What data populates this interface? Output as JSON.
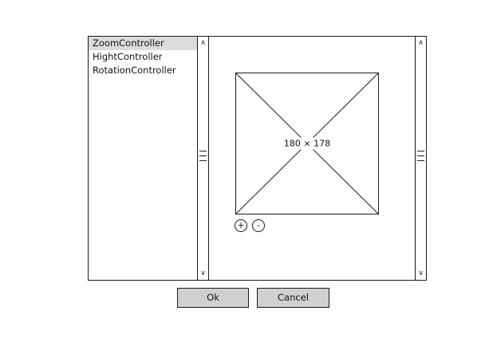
{
  "list": {
    "items": [
      {
        "label": "ZoomController",
        "selected": true
      },
      {
        "label": "HightController",
        "selected": false
      },
      {
        "label": "RotationController",
        "selected": false
      }
    ]
  },
  "preview": {
    "image_size_label": "180 × 178",
    "zoom_in_label": "+",
    "zoom_out_label": "-"
  },
  "scrollbar": {
    "up_glyph": "∧",
    "down_glyph": "∨"
  },
  "buttons": {
    "ok_label": "Ok",
    "cancel_label": "Cancel"
  }
}
